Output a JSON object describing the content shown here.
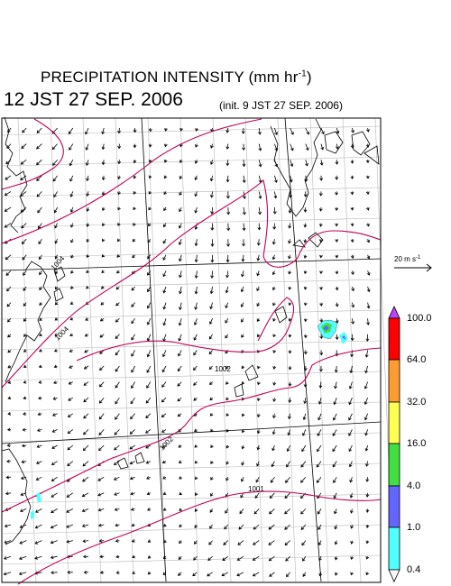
{
  "title": {
    "main": "PRECIPITATION INTENSITY (mm hr",
    "exp": "-1",
    "close": ")"
  },
  "valid_time": "12 JST 27 SEP. 2006",
  "init_time": "(init. 9 JST 27 SEP. 2006)",
  "wind_scale": {
    "value": "20",
    "unit": "m s",
    "exp": "-1"
  },
  "isobar_labels": [
    "1004",
    "1004",
    "1002",
    "1002",
    "1001"
  ],
  "legend": {
    "levels": [
      "100.0",
      "64.0",
      "32.0",
      "16.0",
      "4.0",
      "1.0",
      "0.4"
    ],
    "colors": [
      "#c040ff",
      "#ff0000",
      "#ff9c30",
      "#ffff50",
      "#40e040",
      "#6464ff",
      "#50ffff",
      "#ffffff"
    ]
  },
  "colors": {
    "isobar": "#c0005a",
    "coast": "#000000",
    "grid": "#b8b8b8"
  }
}
